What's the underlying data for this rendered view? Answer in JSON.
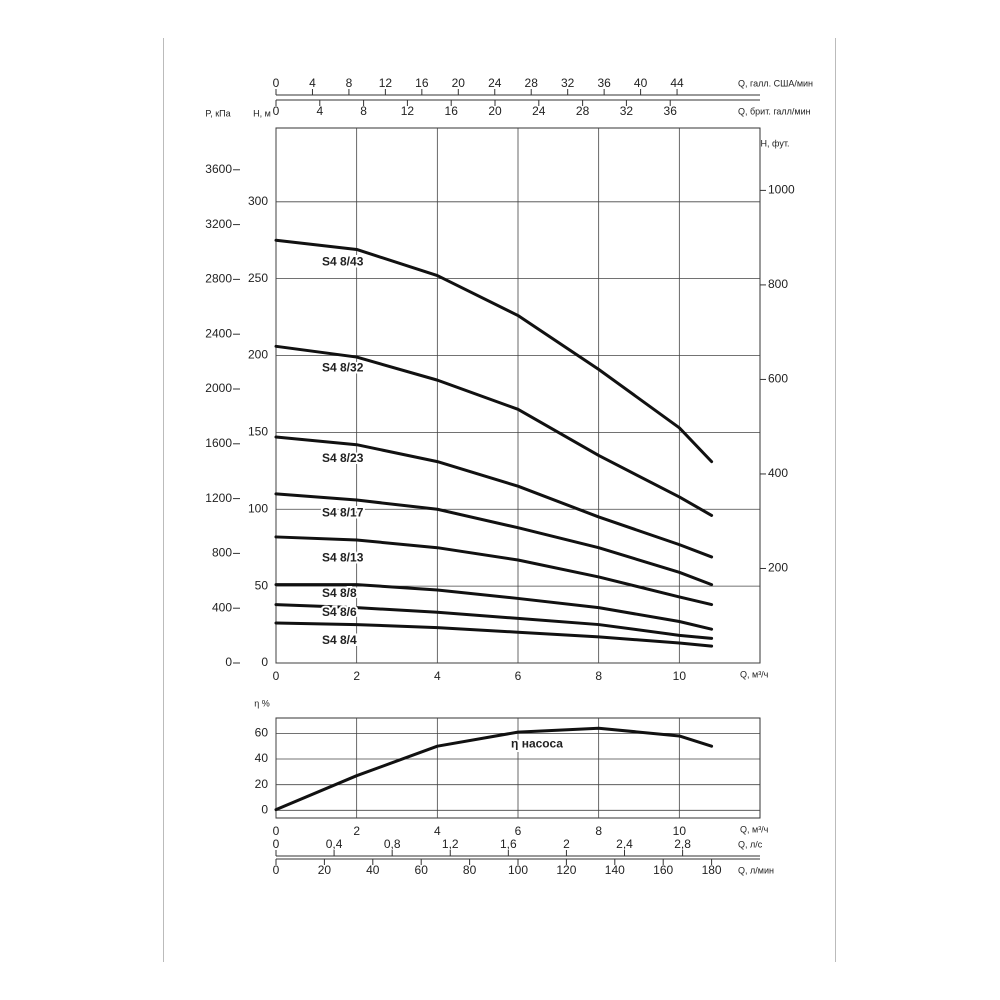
{
  "chart_data": [
    {
      "type": "line",
      "x_label": "Q, м³/ч",
      "y_label": "H, м",
      "x": [
        0,
        2,
        4,
        6,
        8,
        10,
        10.8
      ],
      "xlim": [
        0,
        12
      ],
      "xticks": [
        0,
        2,
        4,
        6,
        8,
        10
      ],
      "ylim": [
        0,
        348
      ],
      "yticks": [
        0,
        50,
        100,
        150,
        200,
        250,
        300
      ],
      "grid": true,
      "series": [
        {
          "name": "S4 8/43",
          "color": "#111111",
          "values": [
            275,
            269,
            252,
            226,
            191,
            153,
            131
          ]
        },
        {
          "name": "S4 8/32",
          "color": "#111111",
          "values": [
            206,
            199,
            184,
            165,
            135,
            108,
            96
          ]
        },
        {
          "name": "S4 8/23",
          "color": "#111111",
          "values": [
            147,
            142,
            131,
            115,
            95,
            77,
            69
          ]
        },
        {
          "name": "S4 8/17",
          "color": "#111111",
          "values": [
            110,
            106,
            100,
            88,
            75,
            59,
            51
          ]
        },
        {
          "name": "S4 8/13",
          "color": "#111111",
          "values": [
            82,
            80,
            75,
            67,
            56,
            43,
            38
          ]
        },
        {
          "name": "S4 8/8",
          "color": "#111111",
          "values": [
            51,
            51,
            47.5,
            42,
            36,
            27,
            22
          ]
        },
        {
          "name": "S4 8/6",
          "color": "#111111",
          "values": [
            38,
            36,
            33,
            29,
            25,
            18,
            16
          ]
        },
        {
          "name": "S4 8/4",
          "color": "#111111",
          "values": [
            26,
            25,
            23,
            20,
            17,
            13,
            11
          ]
        }
      ],
      "extra_axes": [
        {
          "side": "left",
          "label": "P, кПа",
          "lim": [
            0,
            3905
          ],
          "ticks": [
            0,
            400,
            800,
            1200,
            1600,
            2000,
            2400,
            2800,
            3200,
            3600
          ]
        },
        {
          "side": "right",
          "label": "H, фут.",
          "lim": [
            0,
            1132
          ],
          "ticks": [
            200,
            400,
            600,
            800,
            1000
          ]
        },
        {
          "side": "top",
          "label": "Q, галл. США/мин",
          "lim": [
            0,
            53.1
          ],
          "ticks": [
            0,
            4,
            8,
            12,
            16,
            20,
            24,
            28,
            32,
            36,
            40,
            44
          ]
        },
        {
          "side": "top",
          "label": "Q, брит. галл/мин",
          "lim": [
            0,
            44.2
          ],
          "ticks": [
            0,
            4,
            8,
            12,
            16,
            20,
            24,
            28,
            32,
            36
          ]
        }
      ]
    },
    {
      "type": "line",
      "x_label": "Q, м³/ч",
      "y_label": "η %",
      "x": [
        0,
        2,
        4,
        6,
        8,
        10,
        10.8
      ],
      "xlim": [
        0,
        12
      ],
      "xticks": [
        0,
        2,
        4,
        6,
        8,
        10
      ],
      "ylim": [
        -6,
        72
      ],
      "yticks": [
        0,
        20,
        40,
        60
      ],
      "grid": true,
      "series": [
        {
          "name": "η насоса",
          "color": "#111111",
          "values": [
            0.5,
            27,
            50,
            61,
            64,
            58,
            50
          ]
        }
      ],
      "extra_axes": [
        {
          "side": "bottom",
          "label": "Q, л/с",
          "lim": [
            0,
            3.333
          ],
          "ticks": [
            0,
            {
              "value": 0.4,
              "label": "0,4"
            },
            {
              "value": 0.8,
              "label": "0,8"
            },
            {
              "value": 1.2,
              "label": "1,2"
            },
            {
              "value": 1.6,
              "label": "1,6"
            },
            2,
            {
              "value": 2.4,
              "label": "2,4"
            },
            {
              "value": 2.8,
              "label": "2,8"
            }
          ]
        },
        {
          "side": "bottom",
          "label": "Q, л/мин",
          "lim": [
            0,
            200
          ],
          "ticks": [
            0,
            20,
            40,
            60,
            80,
            100,
            120,
            140,
            160,
            180
          ]
        }
      ]
    }
  ]
}
